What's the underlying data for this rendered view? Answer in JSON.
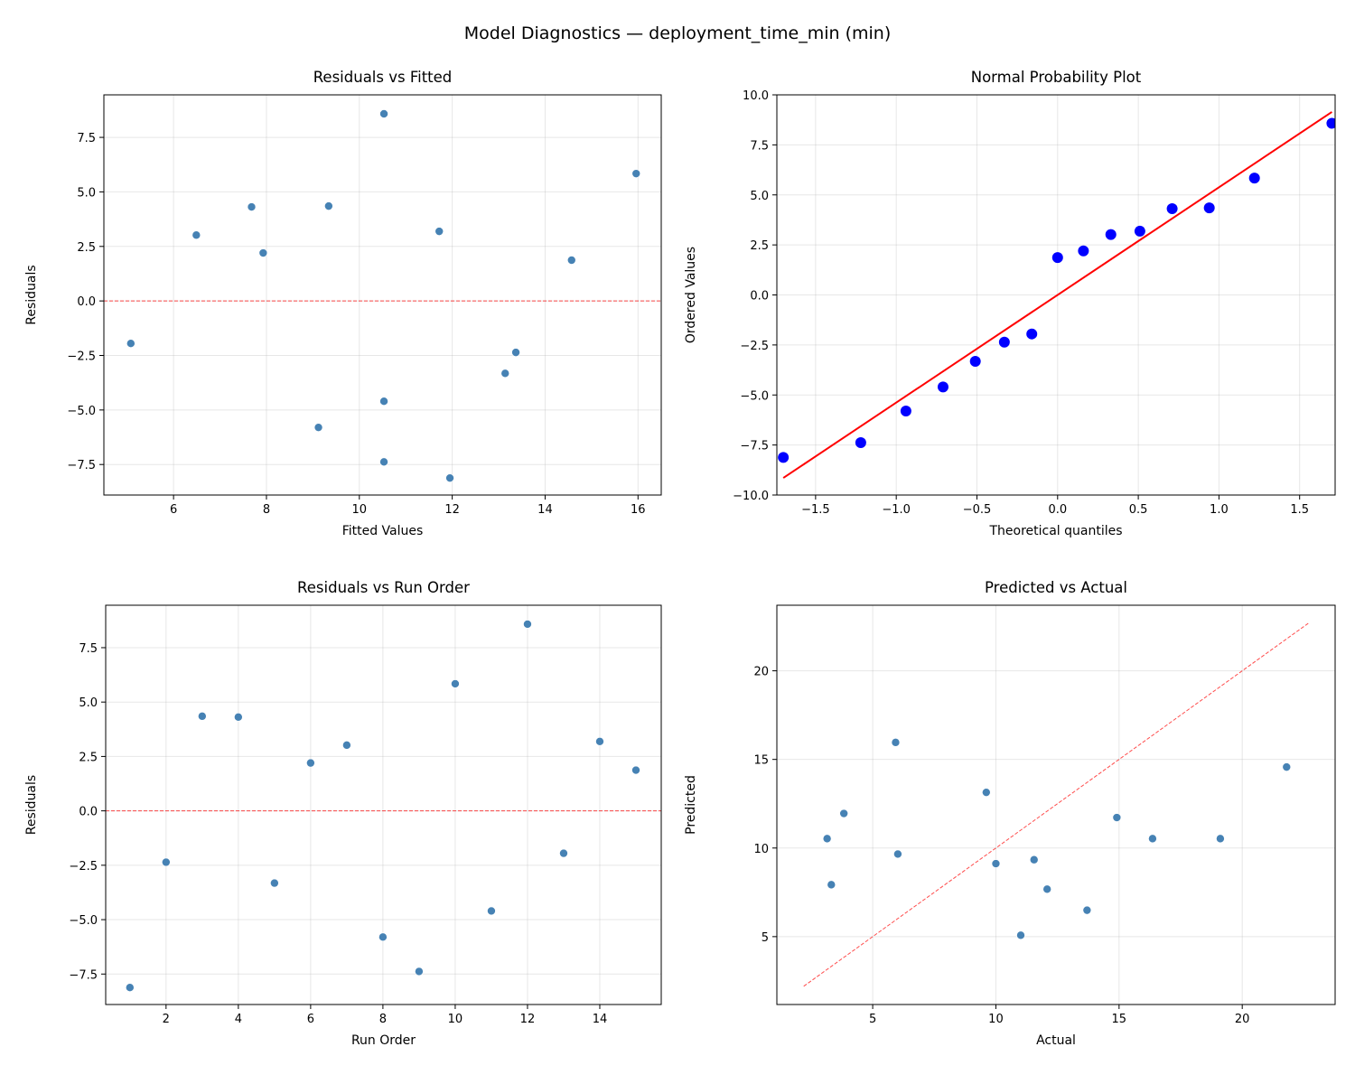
{
  "title": "Model Diagnostics — deployment_time_min (min)",
  "colors": {
    "point": "#4682b4",
    "qq_point": "#0000ff",
    "qq_line": "#ff0000",
    "ref_line": "#ff0000"
  },
  "chart_data": [
    {
      "type": "scatter",
      "title": "Residuals vs Fitted",
      "xlabel": "Fitted Values",
      "ylabel": "Residuals",
      "xlim": [
        4.5,
        16.5
      ],
      "ylim": [
        -8.9,
        9.45
      ],
      "grid": true,
      "xticks": [
        6,
        8,
        10,
        12,
        14,
        16
      ],
      "yticks": [
        -7.5,
        -5.0,
        -2.5,
        0.0,
        2.5,
        5.0,
        7.5
      ],
      "x": [
        5.08,
        6.49,
        7.68,
        7.93,
        9.12,
        9.34,
        10.53,
        10.53,
        10.53,
        11.72,
        11.95,
        13.14,
        13.37,
        14.57,
        15.96
      ],
      "y": [
        -1.95,
        3.02,
        4.31,
        2.2,
        -5.8,
        4.35,
        8.58,
        -4.6,
        -7.38,
        3.19,
        -8.12,
        -3.32,
        -2.36,
        1.87,
        5.84
      ],
      "hline": 0
    },
    {
      "type": "scatter",
      "title": "Normal Probability Plot",
      "xlabel": "Theoretical quantiles",
      "ylabel": "Ordered Values",
      "xlim": [
        -1.74,
        1.72
      ],
      "ylim": [
        -10,
        10
      ],
      "grid": true,
      "xticks": [
        -1.5,
        -1.0,
        -0.5,
        0.0,
        0.5,
        1.0,
        1.5
      ],
      "yticks": [
        -10.0,
        -7.5,
        -5.0,
        -2.5,
        0.0,
        2.5,
        5.0,
        7.5,
        10.0
      ],
      "x": [
        -1.7,
        -1.22,
        -0.94,
        -0.71,
        -0.51,
        -0.33,
        -0.16,
        0.0,
        0.16,
        0.33,
        0.51,
        0.71,
        0.94,
        1.22,
        1.7
      ],
      "y": [
        -8.12,
        -7.38,
        -5.8,
        -4.6,
        -3.32,
        -2.36,
        -1.95,
        1.87,
        2.2,
        3.02,
        3.19,
        4.31,
        4.35,
        5.84,
        8.58
      ],
      "fit_line": {
        "slope": 5.38,
        "intercept": 0.0
      }
    },
    {
      "type": "scatter",
      "title": "Residuals vs Run Order",
      "xlabel": "Run Order",
      "ylabel": "Residuals",
      "xlim": [
        0.33,
        15.7
      ],
      "ylim": [
        -8.9,
        9.45
      ],
      "grid": true,
      "xticks": [
        2,
        4,
        6,
        8,
        10,
        12,
        14
      ],
      "yticks": [
        -7.5,
        -5.0,
        -2.5,
        0.0,
        2.5,
        5.0,
        7.5
      ],
      "x": [
        1,
        2,
        3,
        4,
        5,
        6,
        7,
        8,
        9,
        10,
        11,
        12,
        13,
        14,
        15
      ],
      "y": [
        -8.12,
        -2.36,
        4.35,
        4.31,
        -3.32,
        2.2,
        3.02,
        -5.8,
        -7.38,
        5.84,
        -4.6,
        8.58,
        -1.95,
        3.19,
        1.87
      ],
      "hline": 0
    },
    {
      "type": "scatter",
      "title": "Predicted vs Actual",
      "xlabel": "Actual",
      "ylabel": "Predicted",
      "xlim": [
        1.11,
        23.77
      ],
      "ylim": [
        1.17,
        23.7
      ],
      "grid": true,
      "xticks": [
        5,
        10,
        15,
        20
      ],
      "yticks": [
        5,
        10,
        15,
        20
      ],
      "x": [
        3.83,
        6.02,
        11.55,
        12.08,
        9.61,
        3.32,
        13.7,
        10.0,
        19.11,
        5.93,
        3.15,
        16.36,
        11.01,
        14.91,
        21.8
      ],
      "y": [
        11.95,
        9.66,
        9.34,
        7.68,
        13.14,
        7.93,
        6.49,
        9.12,
        10.53,
        15.96,
        10.53,
        10.53,
        5.08,
        11.72,
        14.57
      ],
      "identity_line": [
        2.2,
        22.7
      ]
    }
  ]
}
